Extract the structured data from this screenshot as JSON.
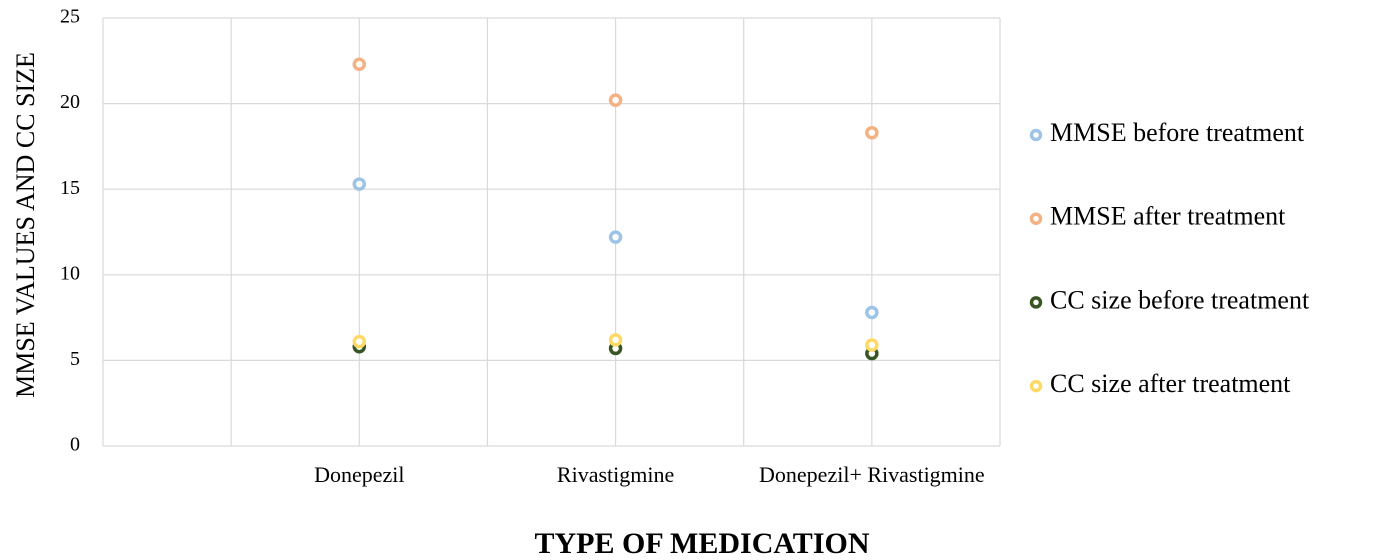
{
  "chart_data": {
    "type": "scatter",
    "x_label": "TYPE OF MEDICATION",
    "y_label": "MMSE  VALUES AND CC SIZE",
    "categories": [
      "Donepezil",
      "Rivastigmine",
      "Donepezil+ Rivastigmine"
    ],
    "ylim": [
      0,
      25
    ],
    "yticks": [
      0,
      5,
      10,
      15,
      20,
      25
    ],
    "grid": true,
    "legend": "right",
    "series": [
      {
        "name": "MMSE before treatment",
        "color": "#9dc3e6",
        "values": [
          15.3,
          12.2,
          7.8
        ]
      },
      {
        "name": "MMSE after treatment",
        "color": "#f4b183",
        "values": [
          22.3,
          20.2,
          18.3
        ]
      },
      {
        "name": "CC size before treatment",
        "color": "#375623",
        "values": [
          5.8,
          5.7,
          5.4
        ]
      },
      {
        "name": "CC size after treatment",
        "color": "#ffd966",
        "values": [
          6.1,
          6.2,
          5.9
        ]
      }
    ]
  }
}
